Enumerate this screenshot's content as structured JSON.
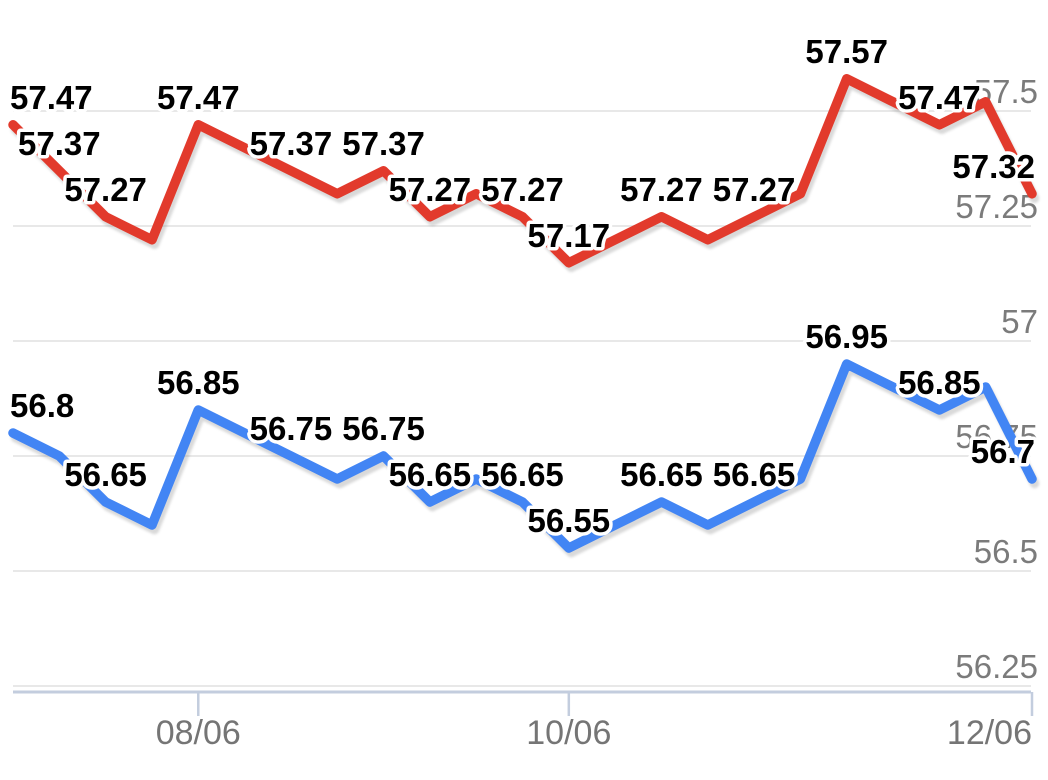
{
  "chart_data": {
    "type": "line",
    "title": "",
    "legend": "none",
    "grid": true,
    "background_color": "#ffffff",
    "gridline_color": "#e8e8e8",
    "data_label_color": "#000000",
    "data_label_halo_color": "#ffffff",
    "line_shadow_color": "#8a8a8a",
    "ylim": [
      56.24,
      57.74
    ],
    "y_axis": {
      "side": "right",
      "tick_values": [
        57.5,
        57.25,
        57.0,
        56.75,
        56.5,
        56.25
      ],
      "tick_labels": [
        "57.5",
        "57.25",
        "57",
        "56.75",
        "56.5",
        "56.25"
      ],
      "label_color": "#7b7b7b"
    },
    "x_axis": {
      "tick_labels": [
        "08/06",
        "10/06",
        "12/06"
      ],
      "tick_point_indices": [
        4,
        12,
        22
      ],
      "label_color": "#757575",
      "axis_line_color": "#c3cdde"
    },
    "series": [
      {
        "name": "upper-red",
        "color": "#e23a2c",
        "values": [
          57.47,
          57.37,
          57.27,
          57.22,
          57.47,
          57.42,
          57.37,
          57.32,
          57.37,
          57.27,
          57.32,
          57.27,
          57.17,
          57.22,
          57.27,
          57.22,
          57.27,
          57.32,
          57.57,
          57.52,
          57.47,
          57.52,
          57.32
        ],
        "point_labels": [
          "57.47",
          "57.37",
          "57.27",
          null,
          "57.47",
          null,
          "57.37",
          null,
          "57.37",
          "57.27",
          null,
          "57.27",
          "57.17",
          null,
          "57.27",
          null,
          "57.27",
          null,
          "57.57",
          null,
          "57.47",
          null,
          "57.32"
        ]
      },
      {
        "name": "lower-blue",
        "color": "#4285f4",
        "values": [
          56.8,
          56.75,
          56.65,
          56.6,
          56.85,
          56.8,
          56.75,
          56.7,
          56.75,
          56.65,
          56.7,
          56.65,
          56.55,
          56.6,
          56.65,
          56.6,
          56.65,
          56.7,
          56.95,
          56.9,
          56.85,
          56.9,
          56.7
        ],
        "point_labels": [
          "56.8",
          null,
          "56.65",
          null,
          "56.85",
          null,
          "56.75",
          null,
          "56.75",
          "56.65",
          null,
          "56.65",
          "56.55",
          null,
          "56.65",
          null,
          "56.65",
          null,
          "56.95",
          null,
          "56.85",
          null,
          "56.7"
        ]
      }
    ]
  }
}
